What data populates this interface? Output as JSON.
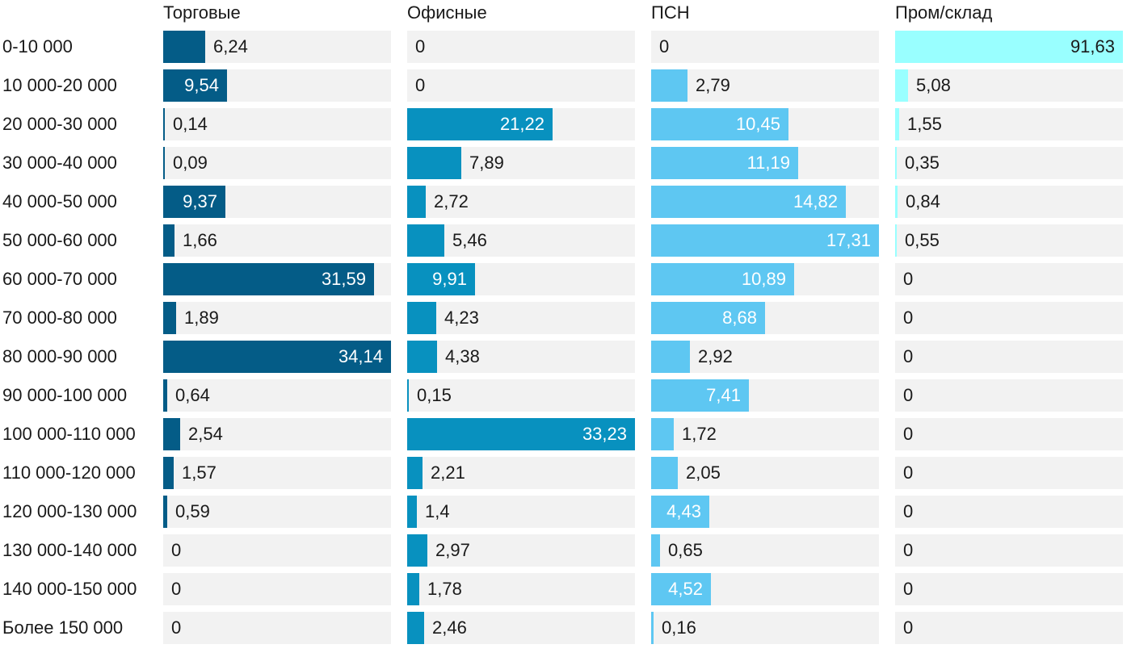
{
  "chart_data": {
    "type": "bar",
    "orientation": "horizontal",
    "layout": "small-multiples",
    "categories": [
      "0-10 000",
      "10 000-20 000",
      "20 000-30 000",
      "30 000-40 000",
      "40 000-50 000",
      "50 000-60 000",
      "60 000-70 000",
      "70 000-80 000",
      "80 000-90 000",
      "90 000-100 000",
      "100 000-110 000",
      "110 000-120 000",
      "120 000-130 000",
      "130 000-140 000",
      "140 000-150 000",
      "Более 150 000"
    ],
    "series": [
      {
        "name": "Торговые",
        "color": "#045c87",
        "xlim": [
          0,
          34.14
        ],
        "values": [
          6.24,
          9.54,
          0.14,
          0.09,
          9.37,
          1.66,
          31.59,
          1.89,
          34.14,
          0.64,
          2.54,
          1.57,
          0.59,
          0,
          0,
          0
        ],
        "labels": [
          "6,24",
          "9,54",
          "0,14",
          "0,09",
          "9,37",
          "1,66",
          "31,59",
          "1,89",
          "34,14",
          "0,64",
          "2,54",
          "1,57",
          "0,59",
          "0",
          "0",
          "0"
        ]
      },
      {
        "name": "Офисные",
        "color": "#0891bf",
        "xlim": [
          0,
          33.23
        ],
        "values": [
          0,
          0,
          21.22,
          7.89,
          2.72,
          5.46,
          9.91,
          4.23,
          4.38,
          0.15,
          33.23,
          2.21,
          1.4,
          2.97,
          1.78,
          2.46
        ],
        "labels": [
          "0",
          "0",
          "21,22",
          "7,89",
          "2,72",
          "5,46",
          "9,91",
          "4,23",
          "4,38",
          "0,15",
          "33,23",
          "2,21",
          "1,4",
          "2,97",
          "1,78",
          "2,46"
        ]
      },
      {
        "name": "ПСН",
        "color": "#5ec7f2",
        "xlim": [
          0,
          17.31
        ],
        "values": [
          0,
          2.79,
          10.45,
          11.19,
          14.82,
          17.31,
          10.89,
          8.68,
          2.92,
          7.41,
          1.72,
          2.05,
          4.43,
          0.65,
          4.52,
          0.16
        ],
        "labels": [
          "0",
          "2,79",
          "10,45",
          "11,19",
          "14,82",
          "17,31",
          "10,89",
          "8,68",
          "2,92",
          "7,41",
          "1,72",
          "2,05",
          "4,43",
          "0,65",
          "4,52",
          "0,16"
        ]
      },
      {
        "name": "Пром/склад",
        "color": "#99ffff",
        "xlim": [
          0,
          91.63
        ],
        "values": [
          91.63,
          5.08,
          1.55,
          0.35,
          0.84,
          0.55,
          0,
          0,
          0,
          0,
          0,
          0,
          0,
          0,
          0,
          0
        ],
        "labels": [
          "91,63",
          "5,08",
          "1,55",
          "0,35",
          "0,84",
          "0,55",
          "0",
          "0",
          "0",
          "0",
          "0",
          "0",
          "0",
          "0",
          "0",
          "0"
        ]
      }
    ],
    "title": "",
    "xlabel": "",
    "ylabel": "",
    "grid": false,
    "legend": "none"
  }
}
